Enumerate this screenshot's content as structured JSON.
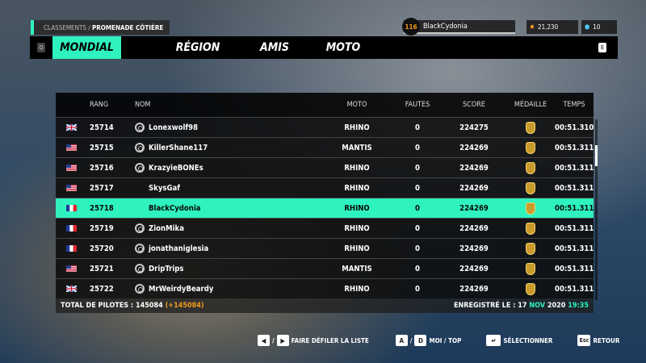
{
  "breadcrumb": {
    "section": "CLASSEMENTS /",
    "track": "PROMENADE CÔTIÈRE"
  },
  "player": {
    "level": "116",
    "name": "BlackCydonia",
    "coins": "21,230",
    "gems": "10"
  },
  "tabs": {
    "left_key": "Q",
    "right_key": "E",
    "items": [
      {
        "label": "MONDIAL",
        "active": true
      },
      {
        "label": "RÉGION"
      },
      {
        "label": "AMIS"
      },
      {
        "label": "MOTO"
      }
    ]
  },
  "table": {
    "headers": [
      "RANG",
      "NOM",
      "MOTO",
      "FAUTES",
      "SCORE",
      "MÉDAILLE",
      "TEMPS"
    ],
    "rows": [
      {
        "flag": "gb",
        "rank": "25714",
        "uplay": true,
        "name": "Lonexwolf98",
        "moto": "RHINO",
        "faults": "0",
        "score": "224275",
        "time": "00:51.310"
      },
      {
        "flag": "us",
        "rank": "25715",
        "uplay": true,
        "name": "KillerShane117",
        "moto": "MANTIS",
        "faults": "0",
        "score": "224269",
        "time": "00:51.311"
      },
      {
        "flag": "us",
        "rank": "25716",
        "uplay": true,
        "name": "KrazyieBONEs",
        "moto": "RHINO",
        "faults": "0",
        "score": "224269",
        "time": "00:51.311"
      },
      {
        "flag": "us",
        "rank": "25717",
        "uplay": false,
        "name": "SkysGaf",
        "moto": "RHINO",
        "faults": "0",
        "score": "224269",
        "time": "00:51.311"
      },
      {
        "flag": "fr",
        "rank": "25718",
        "uplay": false,
        "name": "BlackCydonia",
        "moto": "RHINO",
        "faults": "0",
        "score": "224269",
        "time": "00:51.311",
        "highlight": true
      },
      {
        "flag": "fr",
        "rank": "25719",
        "uplay": true,
        "name": "ZionMika",
        "moto": "RHINO",
        "faults": "0",
        "score": "224269",
        "time": "00:51.311"
      },
      {
        "flag": "fr",
        "rank": "25720",
        "uplay": true,
        "name": "jonathaniglesia",
        "moto": "RHINO",
        "faults": "0",
        "score": "224269",
        "time": "00:51.311"
      },
      {
        "flag": "us",
        "rank": "25721",
        "uplay": true,
        "name": "DripTrips",
        "moto": "MANTIS",
        "faults": "0",
        "score": "224269",
        "time": "00:51.311"
      },
      {
        "flag": "gb",
        "rank": "25722",
        "uplay": true,
        "name": "MrWeirdyBeardy",
        "moto": "RHINO",
        "faults": "0",
        "score": "224269",
        "time": "00:51.311"
      }
    ]
  },
  "footer": {
    "total_label": "TOTAL DE PILOTES : 145084",
    "total_delta": "(+145084)",
    "recorded_label": "ENREGISTRÉ LE : 17",
    "month": "NOV",
    "year": "2020",
    "time": "19:35"
  },
  "hints": {
    "scroll": "FAIRE DÉFILER LA LISTE",
    "scroll_sep": "/",
    "moi_top": "MOI / TOP",
    "key_a": "A",
    "key_d": "D",
    "select": "SÉLECTIONNER",
    "esc": "Esc",
    "back": "RETOUR",
    "ad_sep": "/"
  },
  "colors": {
    "accent": "#2ef3be",
    "orange": "#f39a1e"
  }
}
